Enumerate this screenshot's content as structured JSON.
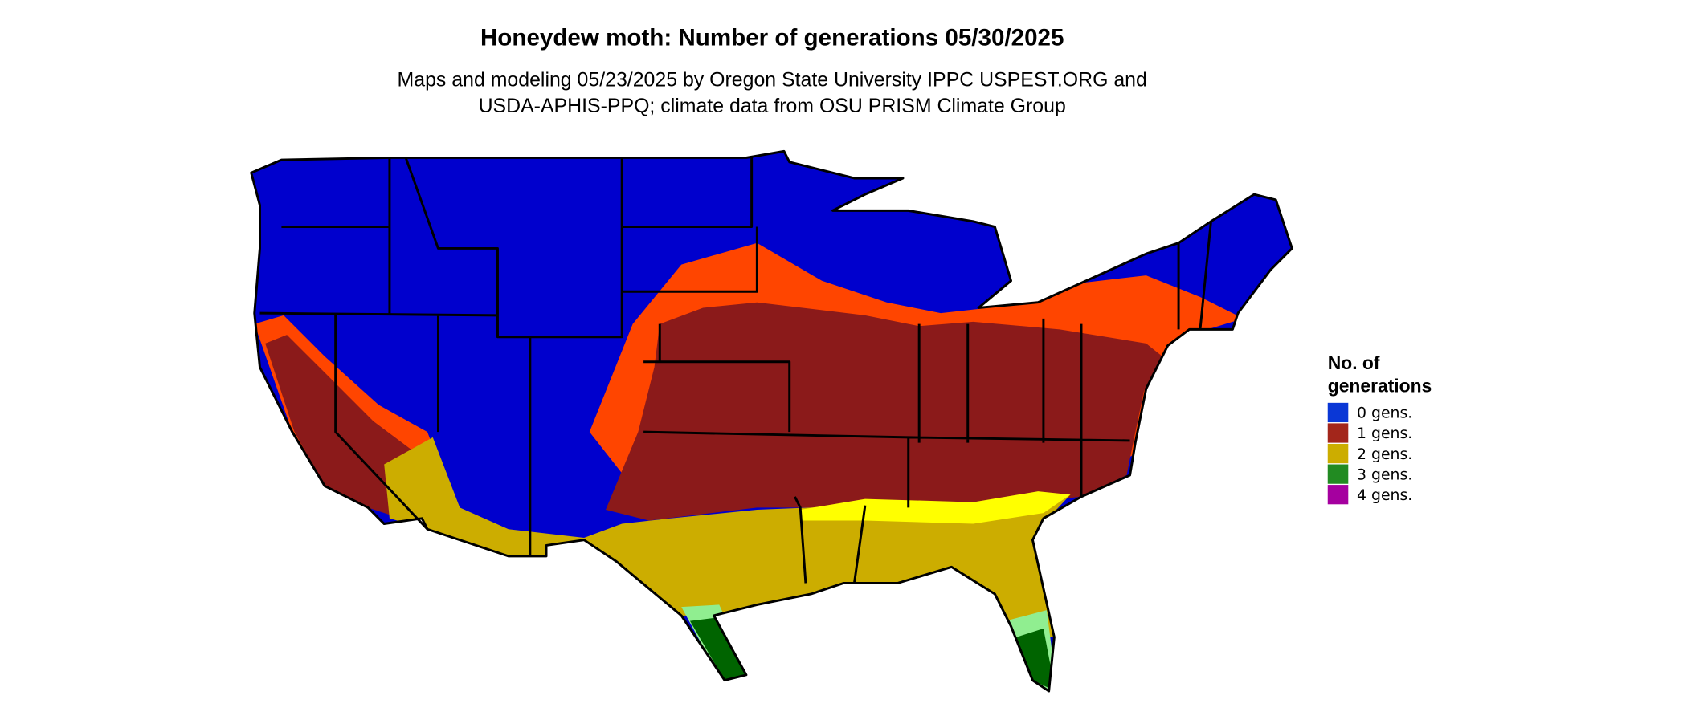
{
  "header": {
    "title": "Honeydew moth: Number of generations 05/30/2025",
    "subtitle": [
      "Maps and modeling 05/23/2025 by Oregon State University IPPC USPEST.ORG and",
      "USDA-APHIS-PPQ; climate data from OSU PRISM Climate Group"
    ]
  },
  "legend": {
    "title": [
      "No. of",
      "generations"
    ],
    "items": [
      {
        "label": "0 gens.",
        "color": "#0a37d6"
      },
      {
        "label": "1 gens.",
        "color": "#a3261b"
      },
      {
        "label": "2 gens.",
        "color": "#ccad00"
      },
      {
        "label": "3 gens.",
        "color": "#228b22"
      },
      {
        "label": "4 gens.",
        "color": "#a5009f"
      }
    ]
  }
}
